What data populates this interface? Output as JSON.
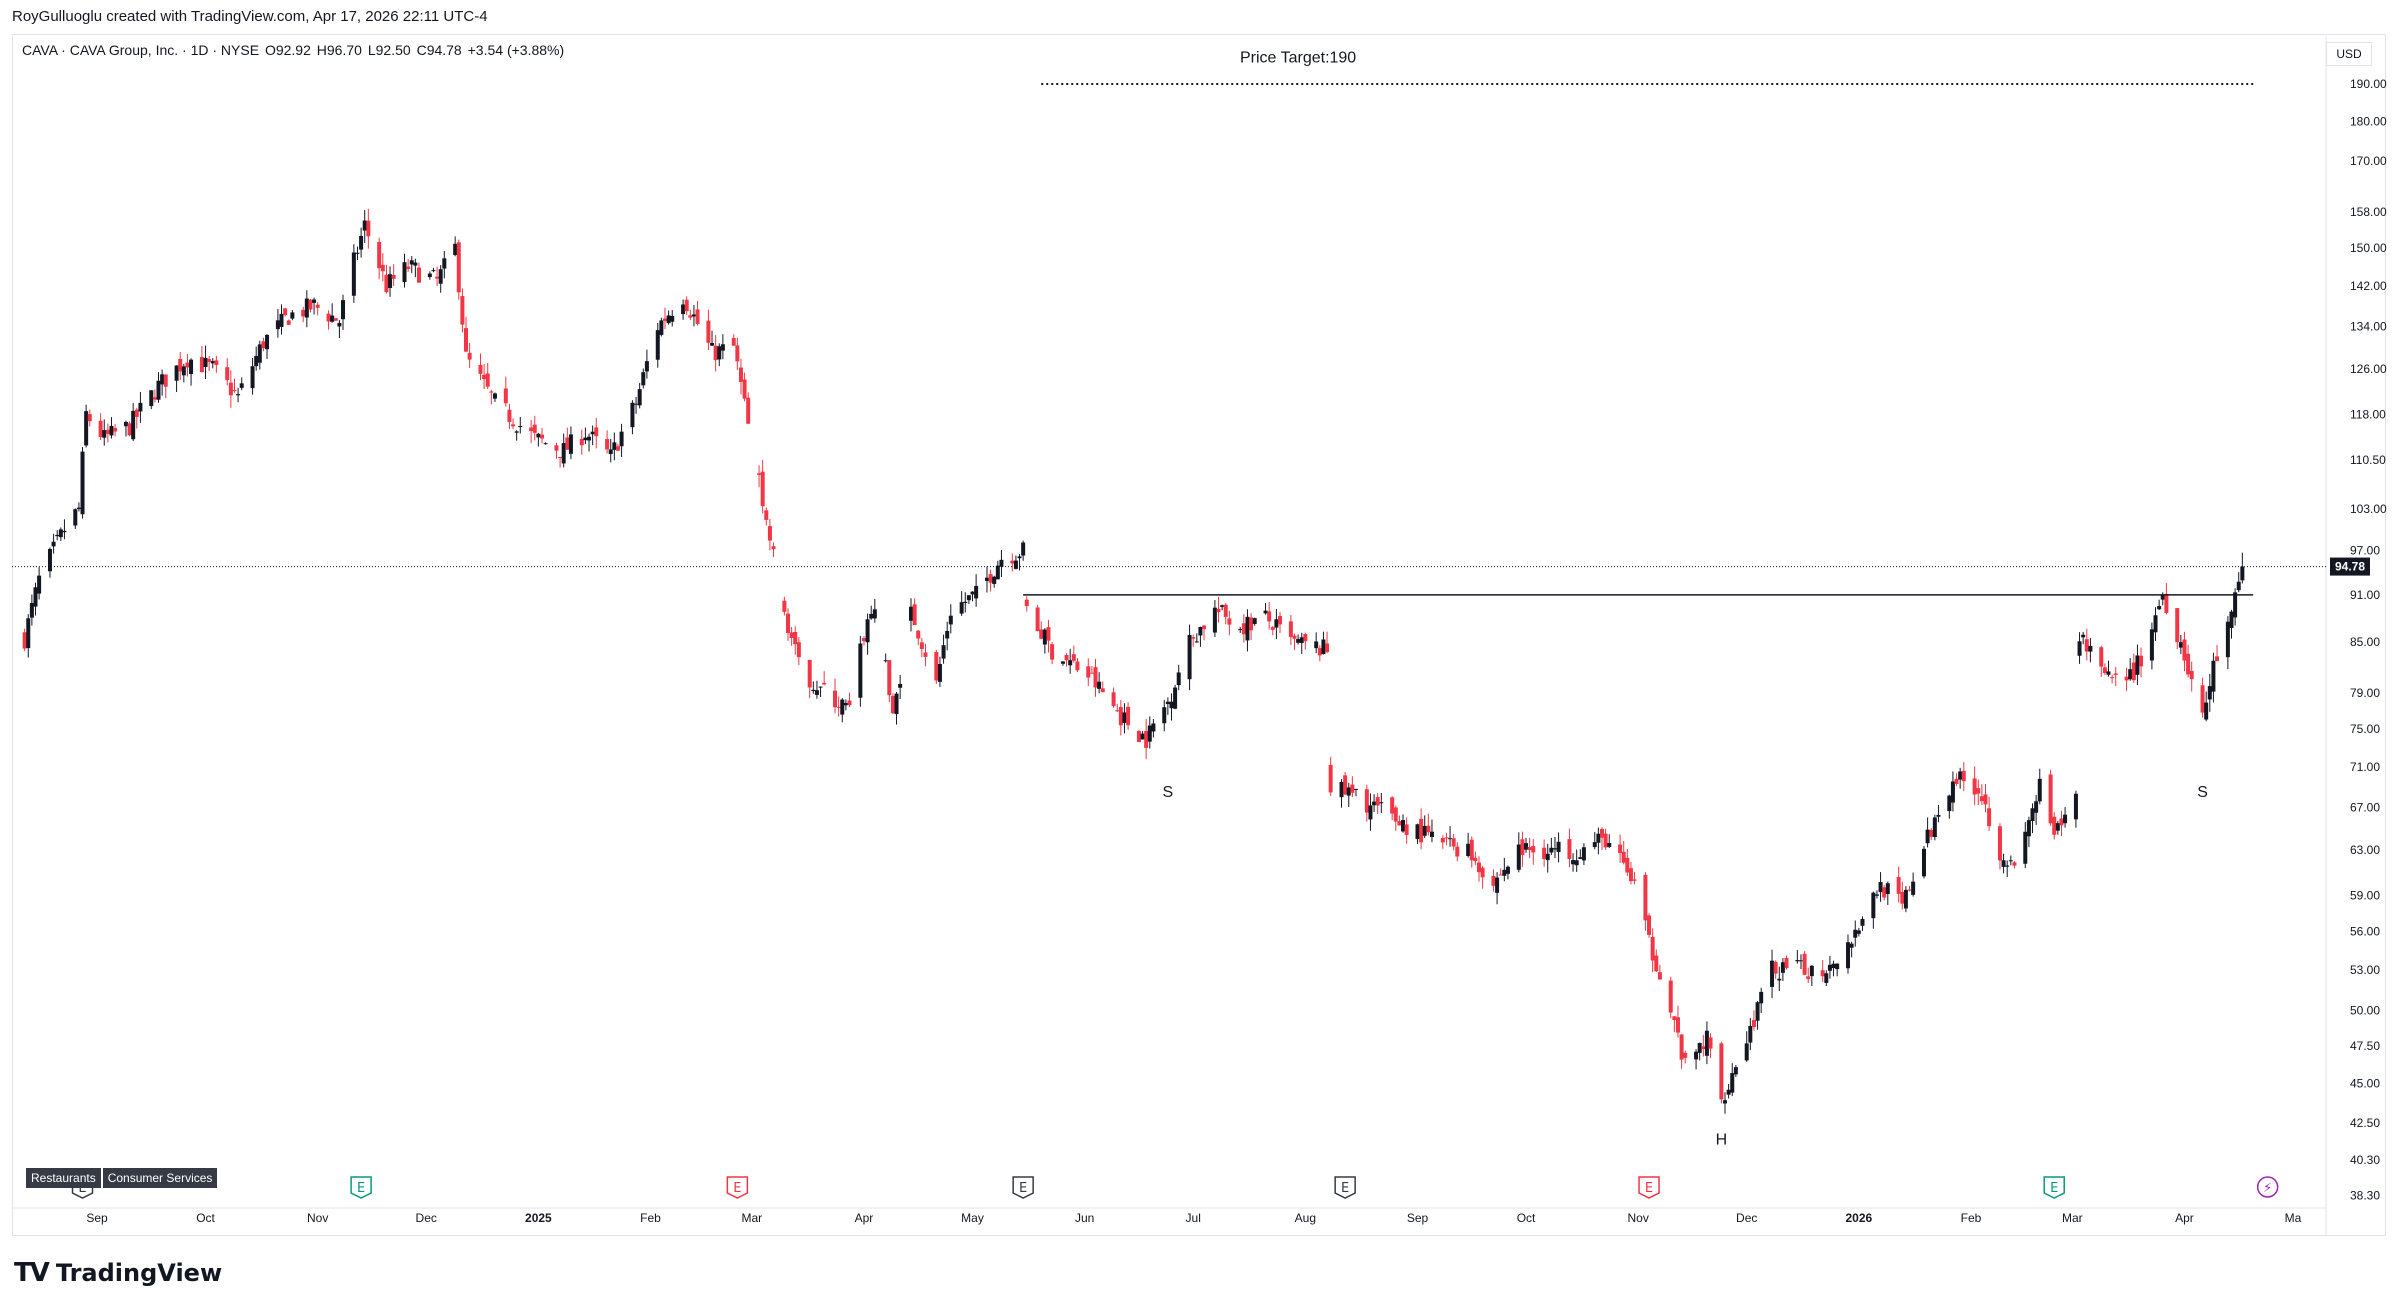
{
  "header": {
    "credit": "RoyGulluoglu created with TradingView.com, Apr 17, 2026 22:11 UTC-4"
  },
  "legend": {
    "symbol": "CAVA · CAVA Group, Inc. · 1D · NYSE",
    "open_label": "O",
    "open": "92.92",
    "high_label": "H",
    "high": "96.70",
    "low_label": "L",
    "low": "92.50",
    "close_label": "C",
    "close": "94.78",
    "change": "+3.54 (+3.88%)"
  },
  "currency": "USD",
  "tags": [
    "Restaurants",
    "Consumer Services"
  ],
  "footer": {
    "logo_mark": "TV",
    "logo_text": "TradingView"
  },
  "colors": {
    "up": "#131722",
    "down": "#f23645",
    "grid": "#e0e3eb",
    "last_price_bg": "#131722",
    "earnings_green": "#089981",
    "earnings_red": "#f23645",
    "earnings_gray": "#363a45",
    "dividend_purple": "#9c27b0"
  },
  "chart_data": {
    "type": "candlestick",
    "title": "CAVA Group, Inc. · 1D · NYSE",
    "y_axis": {
      "scale": "log",
      "ticks": [
        190.0,
        180.0,
        170.0,
        158.0,
        150.0,
        142.0,
        134.0,
        126.0,
        118.0,
        110.5,
        103.0,
        97.0,
        91.0,
        85.0,
        79.0,
        75.0,
        71.0,
        67.0,
        63.0,
        59.0,
        56.0,
        53.0,
        50.0,
        47.5,
        45.0,
        42.5,
        40.3,
        38.3
      ],
      "last_price": 94.78
    },
    "x_axis": {
      "labels": [
        {
          "label": "Sep",
          "date": "2024-09-01",
          "bold": false
        },
        {
          "label": "Oct",
          "date": "2024-10-01",
          "bold": false
        },
        {
          "label": "Nov",
          "date": "2024-11-01",
          "bold": false
        },
        {
          "label": "Dec",
          "date": "2024-12-01",
          "bold": false
        },
        {
          "label": "2025",
          "date": "2025-01-01",
          "bold": true
        },
        {
          "label": "Feb",
          "date": "2025-02-01",
          "bold": false
        },
        {
          "label": "Mar",
          "date": "2025-03-01",
          "bold": false
        },
        {
          "label": "Apr",
          "date": "2025-04-01",
          "bold": false
        },
        {
          "label": "May",
          "date": "2025-05-01",
          "bold": false
        },
        {
          "label": "Jun",
          "date": "2025-06-01",
          "bold": false
        },
        {
          "label": "Jul",
          "date": "2025-07-01",
          "bold": false
        },
        {
          "label": "Aug",
          "date": "2025-08-01",
          "bold": false
        },
        {
          "label": "Sep",
          "date": "2025-09-01",
          "bold": false
        },
        {
          "label": "Oct",
          "date": "2025-10-01",
          "bold": false
        },
        {
          "label": "Nov",
          "date": "2025-11-01",
          "bold": false
        },
        {
          "label": "Dec",
          "date": "2025-12-01",
          "bold": false
        },
        {
          "label": "2026",
          "date": "2026-01-01",
          "bold": true
        },
        {
          "label": "Feb",
          "date": "2026-02-01",
          "bold": false
        },
        {
          "label": "Mar",
          "date": "2026-03-01",
          "bold": false
        },
        {
          "label": "Apr",
          "date": "2026-04-01",
          "bold": false
        },
        {
          "label": "Ma",
          "date": "2026-05-01",
          "bold": false
        }
      ]
    },
    "series": [
      {
        "name": "CAVA",
        "anchors": [
          [
            "2024-08-12",
            85.5
          ],
          [
            "2024-08-16",
            93.0
          ],
          [
            "2024-08-23",
            100.0
          ],
          [
            "2024-08-27",
            103.0
          ],
          [
            "2024-08-29",
            118.0
          ],
          [
            "2024-09-03",
            114.0
          ],
          [
            "2024-09-10",
            116.0
          ],
          [
            "2024-09-18",
            123.0
          ],
          [
            "2024-09-26",
            128.0
          ],
          [
            "2024-10-03",
            126.0
          ],
          [
            "2024-10-10",
            121.0
          ],
          [
            "2024-10-17",
            131.0
          ],
          [
            "2024-10-24",
            136.0
          ],
          [
            "2024-10-31",
            138.0
          ],
          [
            "2024-11-07",
            135.0
          ],
          [
            "2024-11-11",
            147.0
          ],
          [
            "2024-11-14",
            155.0
          ],
          [
            "2024-11-20",
            142.0
          ],
          [
            "2024-11-26",
            146.0
          ],
          [
            "2024-12-04",
            143.0
          ],
          [
            "2024-12-09",
            150.0
          ],
          [
            "2024-12-12",
            128.0
          ],
          [
            "2024-12-20",
            120.0
          ],
          [
            "2024-12-31",
            114.0
          ],
          [
            "2025-01-08",
            112.0
          ],
          [
            "2025-01-14",
            115.0
          ],
          [
            "2025-01-21",
            111.0
          ],
          [
            "2025-01-28",
            120.0
          ],
          [
            "2025-02-03",
            134.0
          ],
          [
            "2025-02-10",
            140.0
          ],
          [
            "2025-02-18",
            129.0
          ],
          [
            "2025-02-24",
            130.0
          ],
          [
            "2025-02-28",
            116.0
          ],
          [
            "2025-03-05",
            101.0
          ],
          [
            "2025-03-10",
            89.0
          ],
          [
            "2025-03-14",
            82.0
          ],
          [
            "2025-03-21",
            79.0
          ],
          [
            "2025-03-28",
            77.0
          ],
          [
            "2025-04-01",
            86.0
          ],
          [
            "2025-04-04",
            90.0
          ],
          [
            "2025-04-09",
            76.0
          ],
          [
            "2025-04-14",
            89.0
          ],
          [
            "2025-04-21",
            80.0
          ],
          [
            "2025-04-25",
            89.0
          ],
          [
            "2025-05-02",
            91.0
          ],
          [
            "2025-05-09",
            96.0
          ],
          [
            "2025-05-15",
            97.0
          ],
          [
            "2025-05-16",
            89.0
          ],
          [
            "2025-05-23",
            84.0
          ],
          [
            "2025-06-02",
            81.0
          ],
          [
            "2025-06-12",
            76.0
          ],
          [
            "2025-06-18",
            74.0
          ],
          [
            "2025-06-24",
            78.0
          ],
          [
            "2025-06-30",
            85.0
          ],
          [
            "2025-07-07",
            89.0
          ],
          [
            "2025-07-14",
            87.0
          ],
          [
            "2025-07-21",
            88.0
          ],
          [
            "2025-07-28",
            85.0
          ],
          [
            "2025-08-07",
            84.0
          ],
          [
            "2025-08-08",
            69.0
          ],
          [
            "2025-08-15",
            68.0
          ],
          [
            "2025-08-25",
            66.0
          ],
          [
            "2025-09-05",
            64.0
          ],
          [
            "2025-09-15",
            63.0
          ],
          [
            "2025-09-22",
            60.0
          ],
          [
            "2025-09-29",
            63.0
          ],
          [
            "2025-10-06",
            63.0
          ],
          [
            "2025-10-16",
            63.0
          ],
          [
            "2025-10-23",
            64.0
          ],
          [
            "2025-10-31",
            60.0
          ],
          [
            "2025-11-04",
            55.0
          ],
          [
            "2025-11-07",
            53.0
          ],
          [
            "2025-11-14",
            46.0
          ],
          [
            "2025-11-20",
            48.0
          ],
          [
            "2025-11-24",
            44.0
          ],
          [
            "2025-12-01",
            48.0
          ],
          [
            "2025-12-08",
            53.0
          ],
          [
            "2025-12-15",
            53.0
          ],
          [
            "2025-12-22",
            53.0
          ],
          [
            "2025-12-29",
            55.0
          ],
          [
            "2026-01-07",
            60.0
          ],
          [
            "2026-01-13",
            58.0
          ],
          [
            "2026-01-20",
            64.0
          ],
          [
            "2026-01-27",
            70.0
          ],
          [
            "2026-02-03",
            69.0
          ],
          [
            "2026-02-09",
            63.0
          ],
          [
            "2026-02-13",
            61.0
          ],
          [
            "2026-02-20",
            69.0
          ],
          [
            "2026-02-24",
            64.0
          ],
          [
            "2026-03-02",
            68.0
          ],
          [
            "2026-03-03",
            86.0
          ],
          [
            "2026-03-09",
            81.0
          ],
          [
            "2026-03-16",
            80.0
          ],
          [
            "2026-03-20",
            83.0
          ],
          [
            "2026-03-26",
            91.0
          ],
          [
            "2026-03-31",
            85.0
          ],
          [
            "2026-04-06",
            76.0
          ],
          [
            "2026-04-09",
            82.0
          ],
          [
            "2026-04-14",
            88.0
          ],
          [
            "2026-04-17",
            94.78
          ]
        ]
      }
    ],
    "annotations": [
      {
        "type": "label",
        "text": "Price Target:190",
        "date": "2025-07-30",
        "price": 196.0
      },
      {
        "type": "dotted_line",
        "from": "2025-05-20",
        "to": "2026-04-20",
        "price": 190.0
      },
      {
        "type": "horizontal_line",
        "from": "2025-05-15",
        "to": "2026-04-20",
        "price": 91.0
      },
      {
        "type": "label",
        "text": "S",
        "date": "2025-06-24",
        "price": 68.0
      },
      {
        "type": "label",
        "text": "H",
        "date": "2025-11-24",
        "price": 41.2
      },
      {
        "type": "label",
        "text": "S",
        "date": "2026-04-06",
        "price": 68.0
      }
    ],
    "events": [
      {
        "date": "2024-08-28",
        "letter": "E",
        "color": "#363a45"
      },
      {
        "date": "2024-11-13",
        "letter": "E",
        "color": "#089981"
      },
      {
        "date": "2025-02-25",
        "letter": "E",
        "color": "#f23645"
      },
      {
        "date": "2025-05-15",
        "letter": "E",
        "color": "#363a45"
      },
      {
        "date": "2025-08-12",
        "letter": "E",
        "color": "#363a45"
      },
      {
        "date": "2025-11-04",
        "letter": "E",
        "color": "#f23645"
      },
      {
        "date": "2026-02-24",
        "letter": "E",
        "color": "#089981"
      },
      {
        "date": "2026-04-24",
        "letter": "⚡",
        "color": "#9c27b0"
      }
    ],
    "grid": false,
    "legend": "top-left"
  }
}
